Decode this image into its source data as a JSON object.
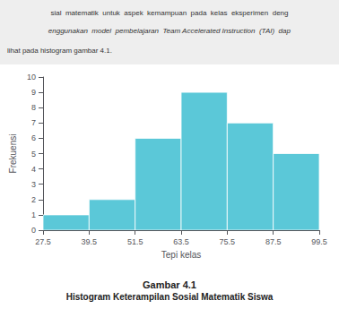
{
  "chart_data": {
    "type": "histogram",
    "title": "Gambar 4.1",
    "subtitle": "Histogram Keterampilan Sosial Matematik Siswa",
    "xlabel": "Tepi kelas",
    "ylabel": "Frekuensi",
    "bins": [
      27.5,
      39.5,
      51.5,
      63.5,
      75.5,
      87.5,
      99.5
    ],
    "values": [
      1,
      2,
      6,
      9,
      7,
      5
    ],
    "color": "#5BC8D8",
    "xlim": [
      27.5,
      99.5
    ],
    "xticks": [
      27.5,
      39.5,
      51.5,
      63.5,
      75.5,
      87.5,
      99.5
    ],
    "ylim": [
      0,
      10
    ],
    "yticks": [
      0,
      1,
      2,
      3,
      4,
      5,
      6,
      7,
      8,
      9,
      10
    ],
    "grid": false,
    "annotations": [
      "sial  matematik  untuk  aspek  kemampuan  pada  kelas  eksperimen  deng",
      "enggunakan  model  pembelajaran  Team Accelerated Instruction  (TAI)  dap",
      "lihat pada histogram gambar 4.1."
    ]
  }
}
